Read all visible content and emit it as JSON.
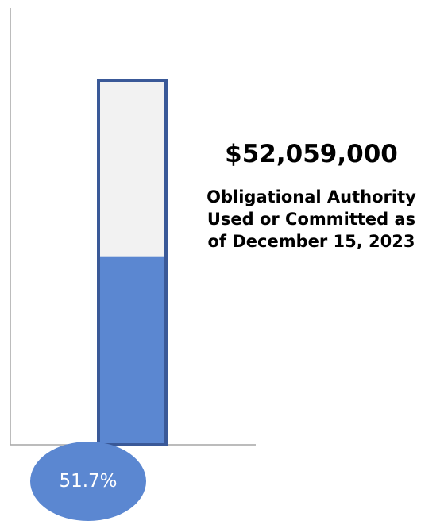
{
  "chart_data": {
    "type": "bar",
    "percent_used": 51.7,
    "percent_label": "51.7%",
    "amount": "$52,059,000",
    "caption_lines": [
      "Obligational Authority",
      "Used or Committed as",
      "of December 15, 2023"
    ],
    "ylim": [
      0,
      100
    ]
  },
  "colors": {
    "fill": "#5b87d1",
    "empty": "#f2f2f2",
    "border": "#3a5998",
    "axis": "#a6a6a6",
    "bubble": "#5b87d1"
  }
}
